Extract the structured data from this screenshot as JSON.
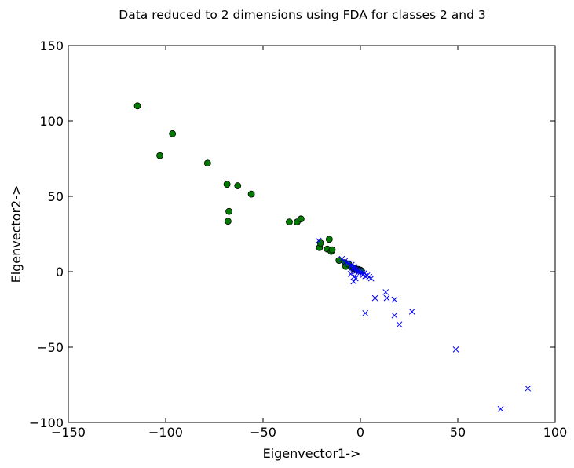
{
  "chart_data": {
    "type": "scatter",
    "title": "Data reduced to 2 dimensions using FDA for classes 2 and 3",
    "xlabel": "Eigenvector1->",
    "ylabel": "Eigenvector2->",
    "xlim": [
      -150,
      100
    ],
    "ylim": [
      -100,
      150
    ],
    "xticks": [
      -150,
      -100,
      -50,
      0,
      50,
      100
    ],
    "yticks": [
      -100,
      -50,
      0,
      50,
      100,
      150
    ],
    "xtick_labels": [
      "−150",
      "−100",
      "−50",
      "0",
      "50",
      "100"
    ],
    "ytick_labels": [
      "−100",
      "−50",
      "0",
      "50",
      "100",
      "150"
    ],
    "grid": false,
    "series": [
      {
        "marker": "circle",
        "color": "#007a00",
        "edge_color": "#000000",
        "points": [
          [
            -114.5,
            110
          ],
          [
            -103,
            77
          ],
          [
            -96.5,
            91.5
          ],
          [
            -78.5,
            72
          ],
          [
            -68.5,
            58
          ],
          [
            -67.5,
            40
          ],
          [
            -68,
            33.5
          ],
          [
            -63,
            57
          ],
          [
            -56,
            51.5
          ],
          [
            -36.5,
            33
          ],
          [
            -32.5,
            33
          ],
          [
            -30.5,
            35
          ],
          [
            -21,
            16
          ],
          [
            -20.5,
            19
          ],
          [
            -17,
            15
          ],
          [
            -16,
            21.5
          ],
          [
            -15,
            13.5
          ],
          [
            -14.5,
            14.5
          ],
          [
            -11,
            7.5
          ],
          [
            -8,
            6
          ],
          [
            -7.5,
            3.5
          ],
          [
            -6,
            5
          ],
          [
            -4.5,
            3
          ],
          [
            -3.5,
            2.5
          ],
          [
            -3,
            1.5
          ],
          [
            -2.5,
            2
          ],
          [
            -2,
            1.5
          ],
          [
            -1.5,
            1
          ],
          [
            -1,
            1.5
          ],
          [
            -0.5,
            1
          ],
          [
            0,
            1
          ],
          [
            0.5,
            0.5
          ]
        ]
      },
      {
        "marker": "x",
        "color": "#0000ff",
        "points": [
          [
            -21.5,
            20.5
          ],
          [
            -9.5,
            8.5
          ],
          [
            -8,
            7
          ],
          [
            -7,
            6
          ],
          [
            -6,
            5.5
          ],
          [
            -5,
            3.5
          ],
          [
            -4.5,
            4.5
          ],
          [
            -4,
            2.5
          ],
          [
            -3.5,
            2
          ],
          [
            -3,
            3
          ],
          [
            -2.5,
            1.5
          ],
          [
            -2,
            0.5
          ],
          [
            -1.5,
            1
          ],
          [
            -1,
            0
          ],
          [
            -0.5,
            0.5
          ],
          [
            0,
            -0.5
          ],
          [
            1,
            -1
          ],
          [
            1.5,
            -2
          ],
          [
            2,
            -1
          ],
          [
            2.5,
            -3
          ],
          [
            3.5,
            -2.5
          ],
          [
            4.5,
            -3.5
          ],
          [
            5.5,
            -4.5
          ],
          [
            -3,
            -3
          ],
          [
            -3.5,
            -6.5
          ],
          [
            -2.5,
            -4.5
          ],
          [
            -5,
            -1.5
          ],
          [
            7.5,
            -17.5
          ],
          [
            2.5,
            -27.5
          ],
          [
            13,
            -13.5
          ],
          [
            13.5,
            -17.5
          ],
          [
            17.5,
            -18.5
          ],
          [
            17.5,
            -29
          ],
          [
            20,
            -35
          ],
          [
            26.5,
            -26.5
          ],
          [
            49,
            -51.5
          ],
          [
            72,
            -91
          ],
          [
            86,
            -77.5
          ]
        ]
      }
    ]
  }
}
